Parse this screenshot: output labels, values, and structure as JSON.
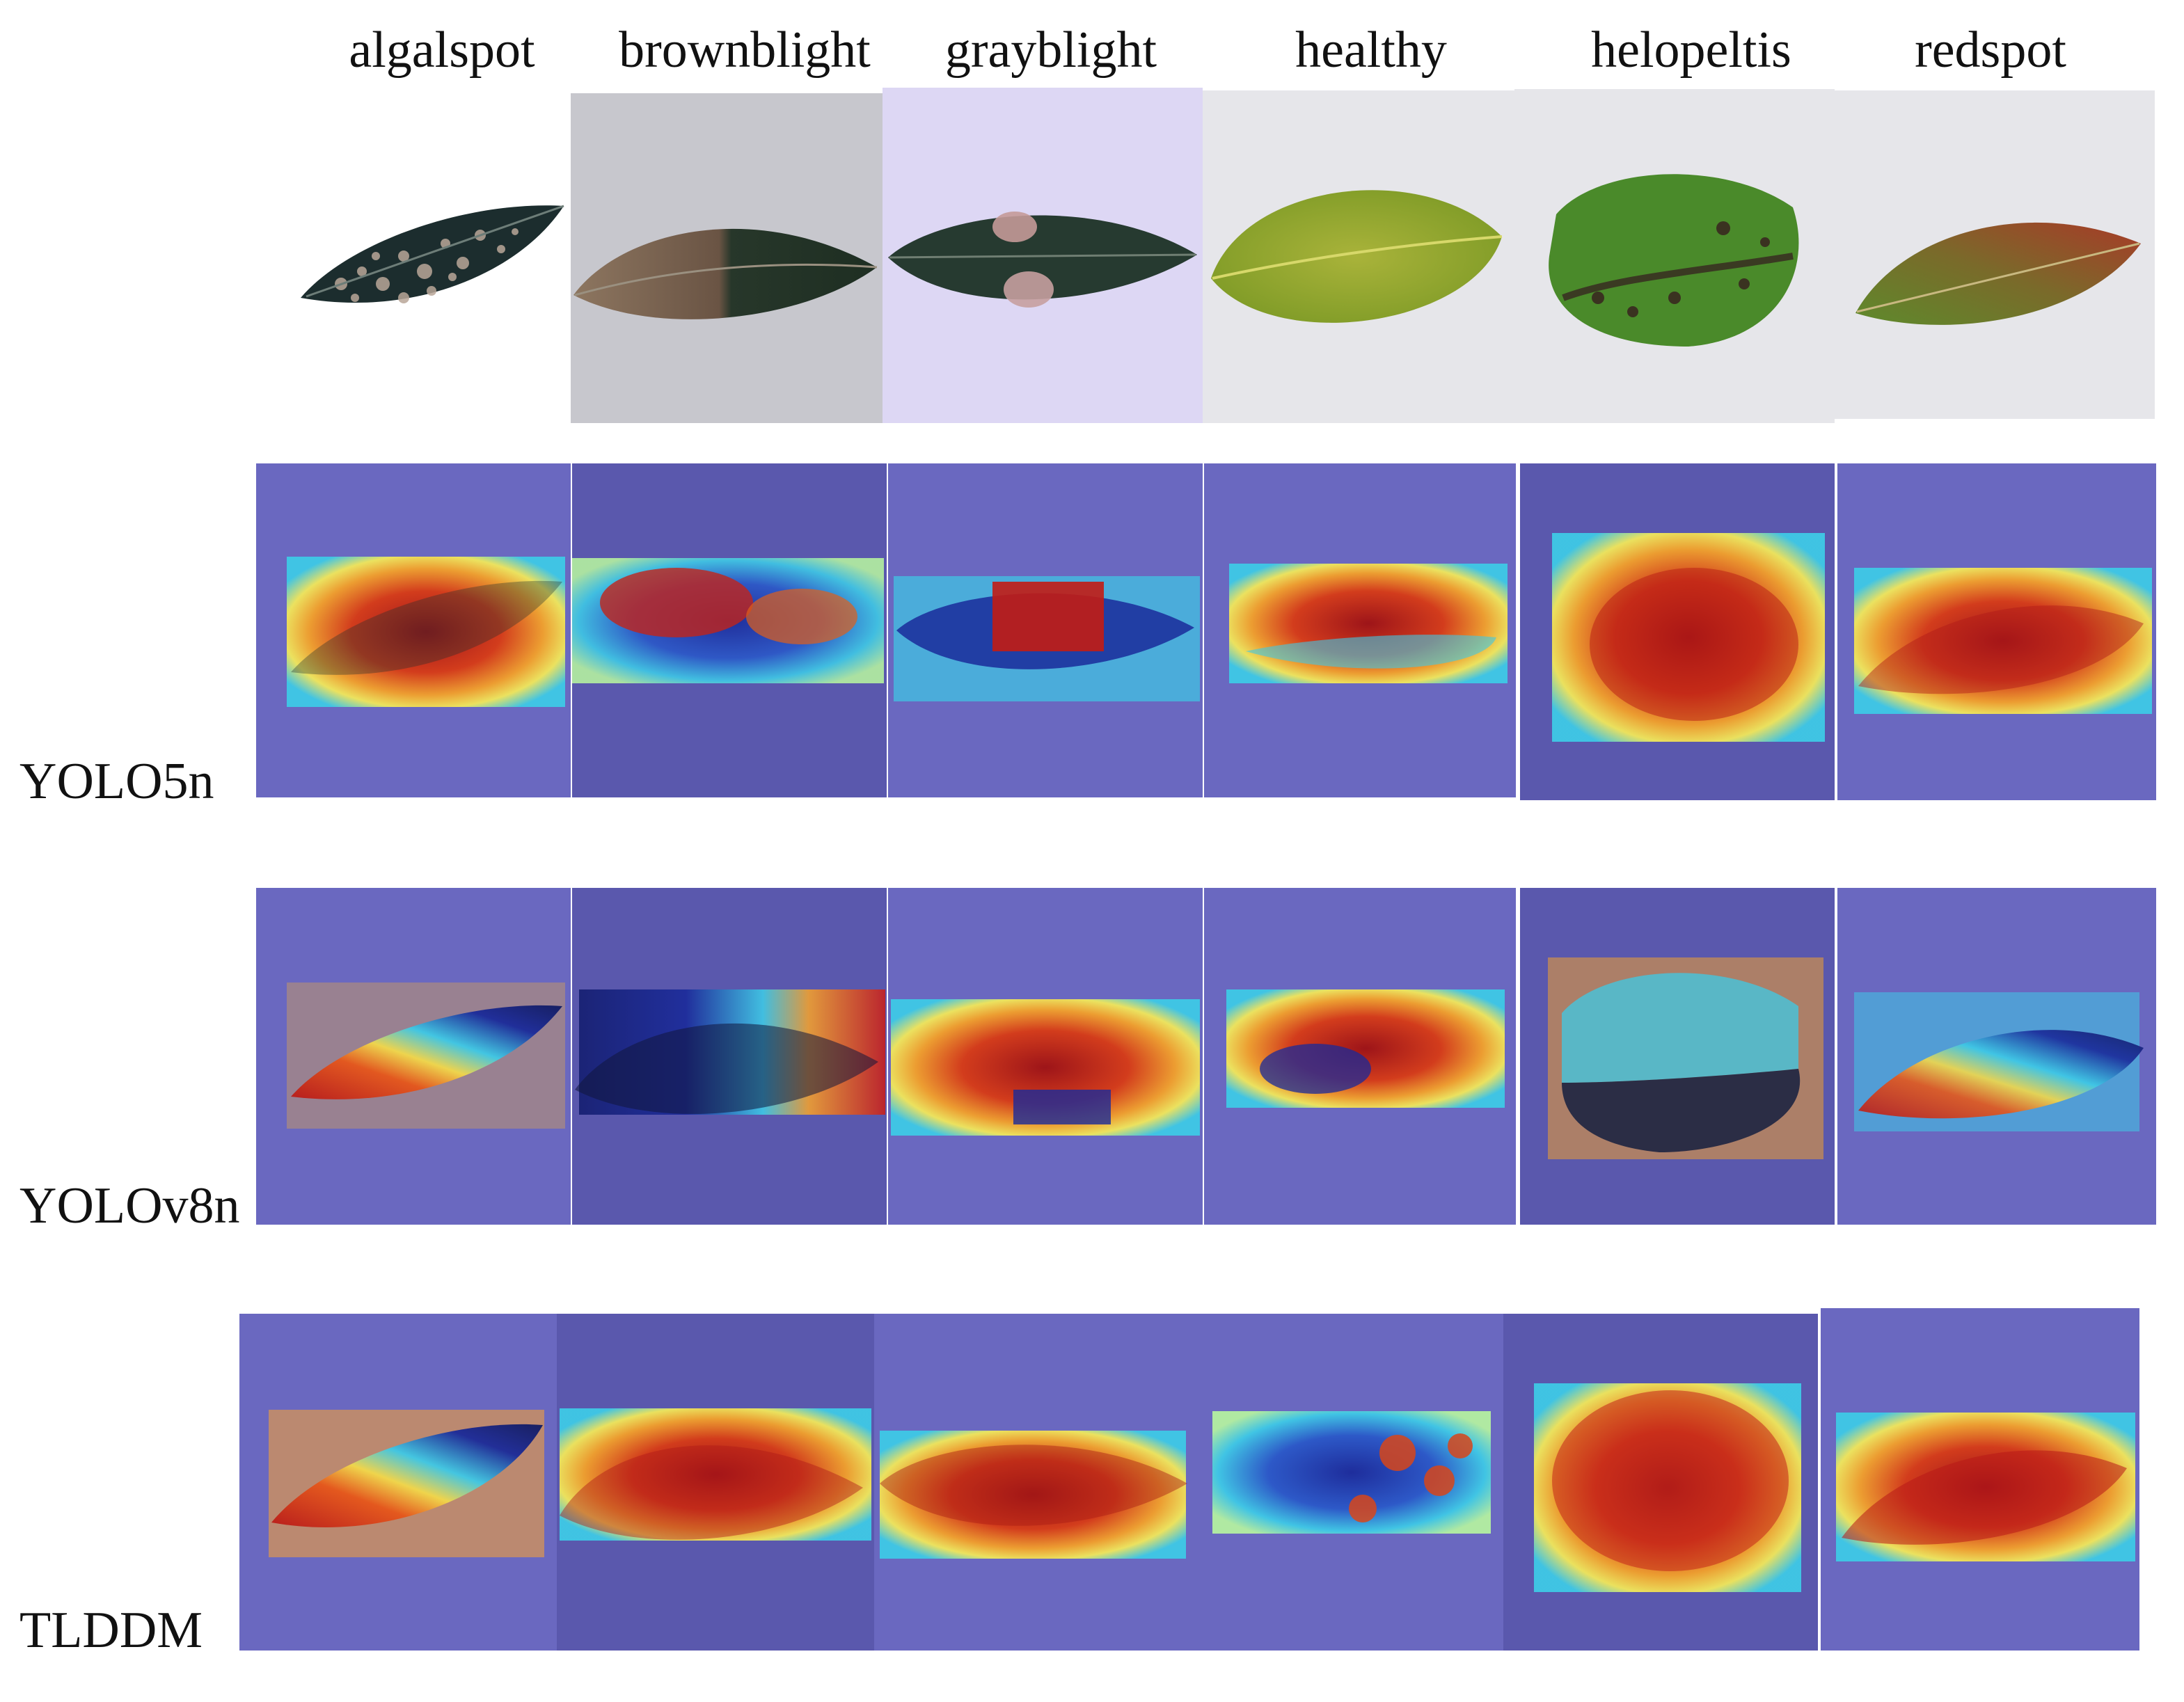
{
  "figure": {
    "columns": [
      "algalspot",
      "brownblight",
      "grayblight",
      "healthy",
      "helopeltis",
      "redspot"
    ],
    "rows": [
      "",
      "YOLO5n",
      "YOLOv8n",
      "TLDDM"
    ]
  },
  "colors": {
    "overlay_bg": "#6a68c0",
    "overlay_bg_dark": "#5a58ad",
    "photo_bg_gray": "#c7c7cd",
    "photo_bg_lavender": "#ddd7f4",
    "photo_bg_light": "#e6e6ea",
    "photo_bg_white": "#ffffff",
    "heat_red": "#b01818",
    "heat_orange": "#f06a1a",
    "heat_yellow": "#f3e24a",
    "heat_cyan": "#3ec9e6",
    "heat_blue": "#1a2a9a",
    "leaf_dark": "#1f2e2c",
    "leaf_green": "#5c8a2a",
    "leaf_yellow": "#9fb23a"
  }
}
